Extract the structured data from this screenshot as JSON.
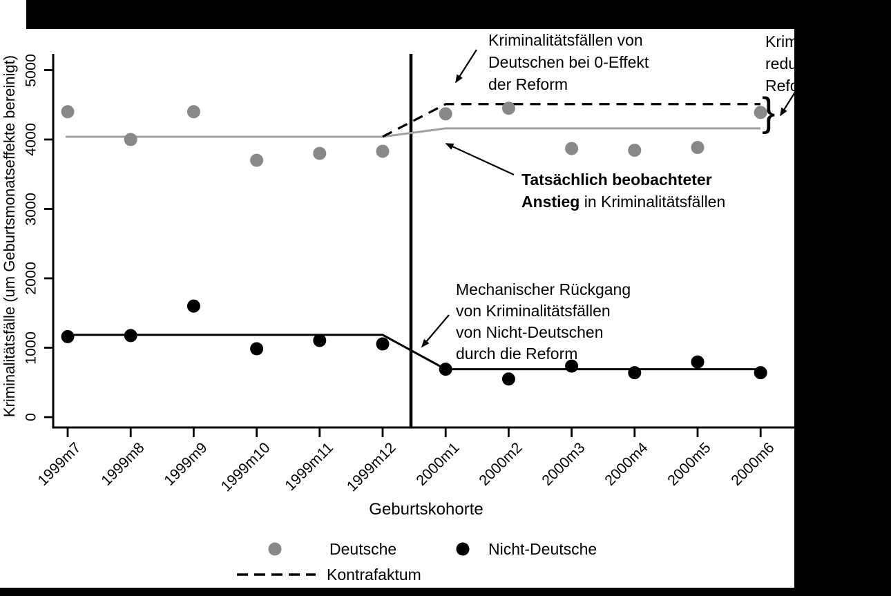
{
  "chart_data": {
    "type": "scatter",
    "title": "",
    "xlabel": "Geburtskohorte",
    "ylabel": "Kriminalitätsfälle (um Geburtsmonatseffekte bereinigt)",
    "categories": [
      "1999m7",
      "1999m8",
      "1999m9",
      "1999m10",
      "1999m11",
      "1999m12",
      "2000m1",
      "2000m2",
      "2000m3",
      "2000m4",
      "2000m5",
      "2000m6"
    ],
    "y_ticks": [
      0,
      1000,
      2000,
      3000,
      4000,
      5000
    ],
    "ylim": [
      0,
      5400
    ],
    "grid": false,
    "reform_cutoff_between": [
      "1999m12",
      "2000m1"
    ],
    "series": [
      {
        "name": "Deutsche",
        "marker": "dot",
        "color": "#888888",
        "values": [
          4400,
          4000,
          4400,
          3700,
          3800,
          3830,
          4370,
          4450,
          3870,
          3845,
          3885,
          4390
        ]
      },
      {
        "name": "Nicht-Deutsche",
        "marker": "dot",
        "color": "#000000",
        "values": [
          1160,
          1175,
          1600,
          985,
          1105,
          1055,
          690,
          550,
          735,
          640,
          795,
          640
        ]
      }
    ],
    "fit_lines": [
      {
        "name": "Deutsche-beobachtet",
        "color": "#a0a0a0",
        "dashed": false,
        "pre_level": 4040,
        "post_level": 4160,
        "post_only": false
      },
      {
        "name": "Nicht-Deutsche",
        "color": "#000000",
        "dashed": false,
        "pre_level": 1185,
        "post_level": 690,
        "post_only": false
      },
      {
        "name": "Kontrafaktum",
        "color": "#000000",
        "dashed": true,
        "pre_level": 4040,
        "post_level": 4510,
        "post_only": true
      }
    ],
    "legend": {
      "position": "bottom",
      "entries": [
        {
          "label": "Deutsche",
          "marker": "dot",
          "color": "#888888"
        },
        {
          "label": "Nicht-Deutsche",
          "marker": "dot",
          "color": "#000000"
        },
        {
          "label": "Kontrafaktum",
          "marker": "dash",
          "color": "#000000"
        }
      ]
    }
  },
  "annotations": {
    "counterfactual": {
      "lines": [
        "Kriminalitätsfällen von",
        "Deutschen bei 0-Effekt",
        "der Reform"
      ]
    },
    "observed": {
      "line1": "Tatsächlich beobachteter",
      "line2_bold": "Anstieg",
      "line2_rest": " in Kriminalitätsfällen"
    },
    "mechanical": {
      "lines": [
        "Mechanischer Rückgang",
        "von Kriminalitätsfällen",
        "von Nicht-Deutschen",
        "durch die Reform"
      ]
    },
    "reduction_clipped": {
      "lines": [
        "Krim",
        "redu",
        "Refo"
      ]
    },
    "brace_glyph": "}"
  }
}
